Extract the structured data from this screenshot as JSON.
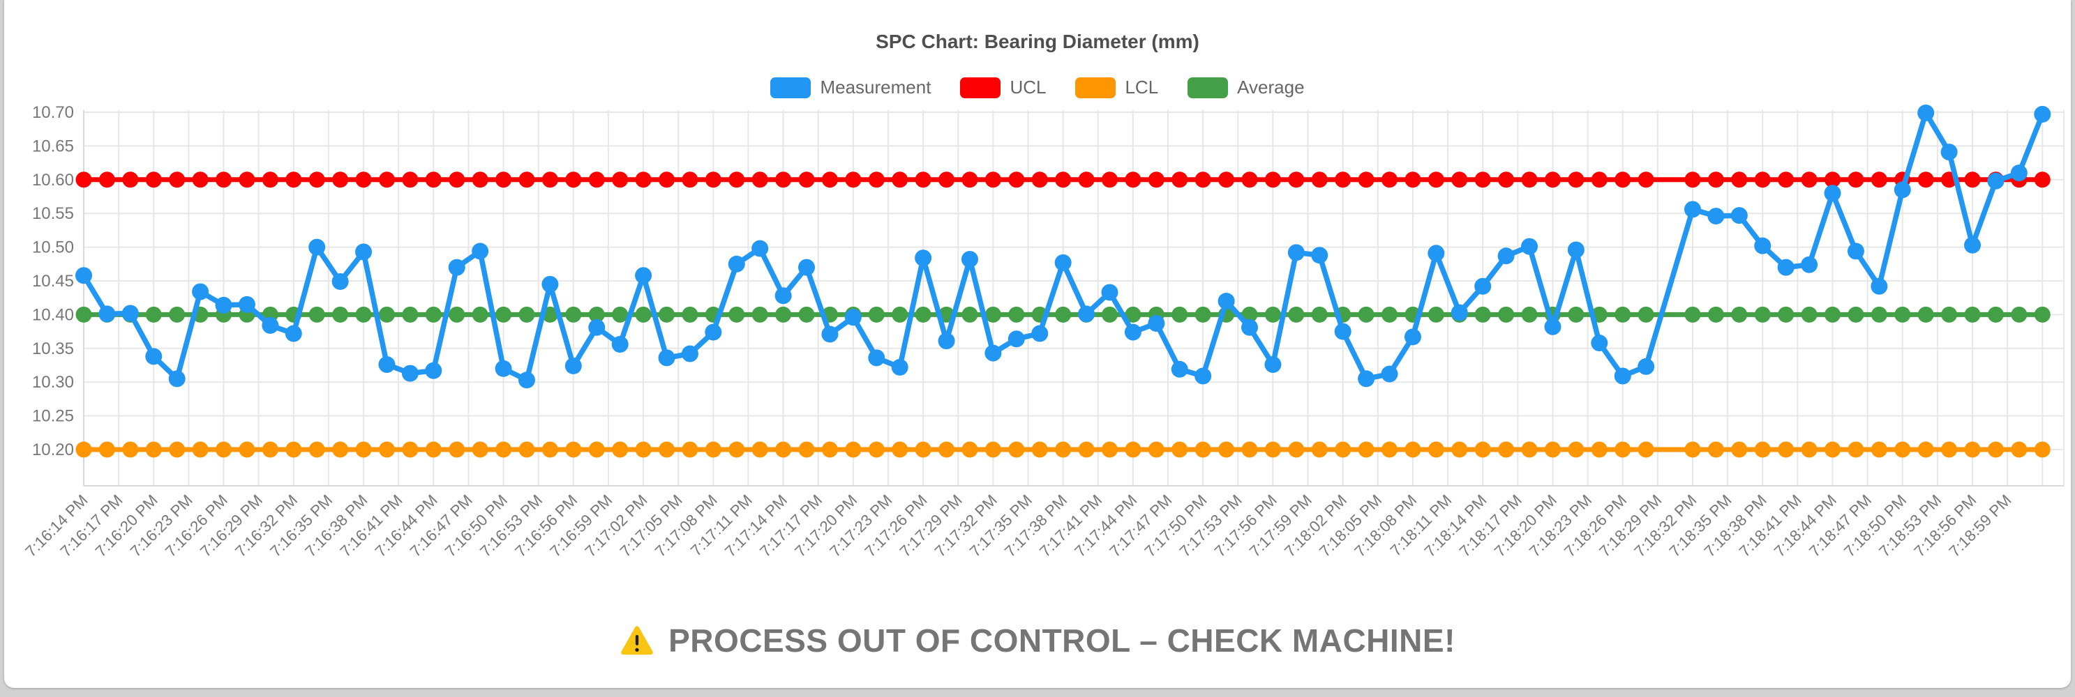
{
  "page": {
    "background_color": "#d2d2d2",
    "card_color": "#ffffff"
  },
  "chart_data": {
    "type": "line",
    "title": "SPC Chart: Bearing Diameter (mm)",
    "legend_position": "top",
    "grid": true,
    "ylim": [
      10.145,
      10.705
    ],
    "y_ticks": [
      10.2,
      10.25,
      10.3,
      10.35,
      10.4,
      10.45,
      10.5,
      10.55,
      10.6,
      10.65,
      10.7
    ],
    "y_tick_labels": [
      "10.20",
      "10.25",
      "10.30",
      "10.35",
      "10.40",
      "10.45",
      "10.50",
      "10.55",
      "10.60",
      "10.65",
      "10.70"
    ],
    "x_tick_labels": [
      "7:16:14 PM",
      "7:16:17 PM",
      "7:16:20 PM",
      "7:16:23 PM",
      "7:16:26 PM",
      "7:16:29 PM",
      "7:16:32 PM",
      "7:16:35 PM",
      "7:16:38 PM",
      "7:16:41 PM",
      "7:16:44 PM",
      "7:16:47 PM",
      "7:16:50 PM",
      "7:16:53 PM",
      "7:16:56 PM",
      "7:16:59 PM",
      "7:17:02 PM",
      "7:17:05 PM",
      "7:17:08 PM",
      "7:17:11 PM",
      "7:17:14 PM",
      "7:17:17 PM",
      "7:17:20 PM",
      "7:17:23 PM",
      "7:17:26 PM",
      "7:17:29 PM",
      "7:17:32 PM",
      "7:17:35 PM",
      "7:17:38 PM",
      "7:17:41 PM",
      "7:17:44 PM",
      "7:17:47 PM",
      "7:17:50 PM",
      "7:17:53 PM",
      "7:17:56 PM",
      "7:17:59 PM",
      "7:18:02 PM",
      "7:18:05 PM",
      "7:18:08 PM",
      "7:18:11 PM",
      "7:18:14 PM",
      "7:18:17 PM",
      "7:18:20 PM",
      "7:18:23 PM",
      "7:18:26 PM",
      "7:18:29 PM",
      "7:18:32 PM",
      "7:18:35 PM",
      "7:18:38 PM",
      "7:18:41 PM",
      "7:18:44 PM",
      "7:18:47 PM",
      "7:18:50 PM",
      "7:18:53 PM",
      "7:18:56 PM",
      "7:18:59 PM"
    ],
    "legend": [
      {
        "label": "Measurement",
        "color": "#2196f3"
      },
      {
        "label": "UCL",
        "color": "#fb0000"
      },
      {
        "label": "LCL",
        "color": "#ff9500"
      },
      {
        "label": "Average",
        "color": "#43a047"
      }
    ],
    "series": [
      {
        "name": "Measurement",
        "color": "#2196f3",
        "values": [
          10.458,
          10.401,
          10.402,
          10.338,
          10.305,
          10.434,
          10.414,
          10.415,
          10.384,
          10.372,
          10.5,
          10.449,
          10.493,
          10.326,
          10.313,
          10.317,
          10.47,
          10.494,
          10.32,
          10.303,
          10.445,
          10.324,
          10.381,
          10.356,
          10.458,
          10.336,
          10.342,
          10.374,
          10.475,
          10.498,
          10.428,
          10.47,
          10.371,
          10.396,
          10.336,
          10.322,
          10.484,
          10.361,
          10.482,
          10.343,
          10.364,
          10.372,
          10.477,
          10.401,
          10.433,
          10.374,
          10.387,
          10.319,
          10.309,
          10.42,
          10.381,
          10.326,
          10.492,
          10.488,
          10.375,
          10.305,
          10.312,
          10.367,
          10.491,
          10.403,
          10.442,
          10.487,
          10.501,
          10.382,
          10.496,
          10.358,
          10.309,
          10.323,
          null,
          10.556,
          10.546,
          10.547,
          10.502,
          10.47,
          10.474,
          10.58,
          10.494,
          10.442,
          10.585,
          10.699,
          10.641,
          10.503,
          10.598,
          10.61,
          10.697
        ]
      },
      {
        "name": "UCL",
        "color": "#fb0000",
        "constant_value": 10.6
      },
      {
        "name": "LCL",
        "color": "#ff9500",
        "constant_value": 10.2
      },
      {
        "name": "Average",
        "color": "#43a047",
        "constant_value": 10.4
      }
    ],
    "axis_text_color": "#777777",
    "grid_color": "#e7e7e7",
    "axis_border_color": "#d9d9d9"
  },
  "warning": {
    "text": "PROCESS OUT OF CONTROL – CHECK MACHINE!",
    "icon": "warning-triangle",
    "icon_color": "#f9c513",
    "text_color": "#757575"
  }
}
